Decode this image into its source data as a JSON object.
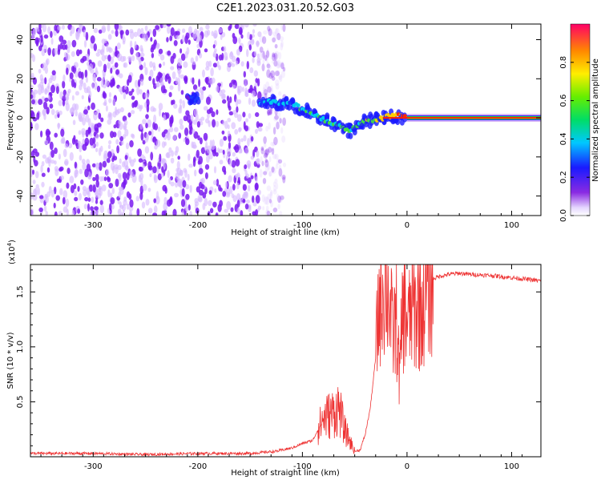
{
  "figure": {
    "title": "C2E1.2023.031.20.52.G03"
  },
  "colors": {
    "snr_line": "#ee3333",
    "noise_primary": "#7a1bf0",
    "noise_light": "#d6b8ff",
    "background": "#ffffff",
    "axis": "#000000"
  },
  "chart_data": [
    {
      "type": "heatmap",
      "title": "C2E1.2023.031.20.52.G03",
      "xlabel": "Height of straight line (km)",
      "ylabel": "Frequency (Hz)",
      "xlim": [
        -360,
        128
      ],
      "ylim": [
        -50,
        48
      ],
      "x_ticks": [
        -300,
        -200,
        -100,
        0,
        100
      ],
      "x_tick_labels": [
        "-300",
        "-200",
        "-100",
        "0",
        "100"
      ],
      "y_ticks": [
        -40,
        -20,
        0,
        20,
        40
      ],
      "y_tick_labels": [
        "-40",
        "-20",
        "0",
        "20",
        "40"
      ],
      "grid": false,
      "colorbar": {
        "label": "Normalized spectral amplitude",
        "range": [
          0,
          1
        ],
        "ticks": [
          0.0,
          0.2,
          0.4,
          0.6,
          0.8
        ],
        "tick_labels": [
          "0.0",
          "0.2",
          "0.4",
          "0.6",
          "0.8"
        ]
      },
      "features": {
        "noise_region_x": [
          -360,
          -125
        ],
        "noise_amplitude_approx": 0.15,
        "signal_track": [
          {
            "x": -210,
            "freq": 10,
            "amp": 0.2
          },
          {
            "x": -190,
            "freq": 9,
            "amp": 0.25
          },
          {
            "x": -130,
            "freq": 8,
            "amp": 0.3
          },
          {
            "x": -110,
            "freq": 7,
            "amp": 0.35
          },
          {
            "x": -90,
            "freq": 2,
            "amp": 0.4
          },
          {
            "x": -70,
            "freq": -3,
            "amp": 0.45
          },
          {
            "x": -55,
            "freq": -7,
            "amp": 0.45
          },
          {
            "x": -40,
            "freq": -2,
            "amp": 0.5
          },
          {
            "x": -25,
            "freq": 0,
            "amp": 0.6
          },
          {
            "x": -10,
            "freq": 1,
            "amp": 0.7
          },
          {
            "x": 0,
            "freq": 0,
            "amp": 0.9
          },
          {
            "x": 128,
            "freq": 0,
            "amp": 1.0
          }
        ]
      }
    },
    {
      "type": "line",
      "xlabel": "Height of straight line (km)",
      "ylabel": "SNR (10 * v/v)",
      "y_multiplier_label": "(x10",
      "y_multiplier_exponent": "4",
      "y_multiplier_close": ")",
      "xlim": [
        -360,
        128
      ],
      "ylim": [
        0,
        1.75
      ],
      "x_ticks": [
        -300,
        -200,
        -100,
        0,
        100
      ],
      "x_tick_labels": [
        "-300",
        "-200",
        "-100",
        "0",
        "100"
      ],
      "y_ticks": [
        0.5,
        1.0,
        1.5
      ],
      "y_tick_labels": [
        "0.5",
        "1.0",
        "1.5"
      ],
      "grid": false,
      "series": [
        {
          "x": [
            -360,
            -300,
            -250,
            -200,
            -150,
            -125,
            -110,
            -100,
            -90,
            -80,
            -70,
            -65,
            -60,
            -55,
            -50,
            -45,
            -40,
            -35,
            -30,
            -27,
            -24,
            -20,
            -17,
            -14,
            -10,
            -7,
            -4,
            -1,
            2,
            5,
            8,
            11,
            14,
            17,
            20,
            25,
            30,
            40,
            50,
            60,
            80,
            100,
            128
          ],
          "y": [
            0.03,
            0.03,
            0.02,
            0.03,
            0.03,
            0.05,
            0.08,
            0.12,
            0.15,
            0.35,
            0.4,
            0.45,
            0.25,
            0.15,
            0.05,
            0.06,
            0.2,
            0.45,
            0.9,
            1.35,
            1.55,
            1.6,
            1.45,
            1.1,
            1.25,
            0.7,
            1.35,
            1.3,
            1.2,
            1.4,
            1.3,
            1.4,
            1.35,
            1.5,
            1.55,
            1.62,
            1.64,
            1.66,
            1.67,
            1.66,
            1.65,
            1.63,
            1.6
          ]
        }
      ]
    }
  ]
}
